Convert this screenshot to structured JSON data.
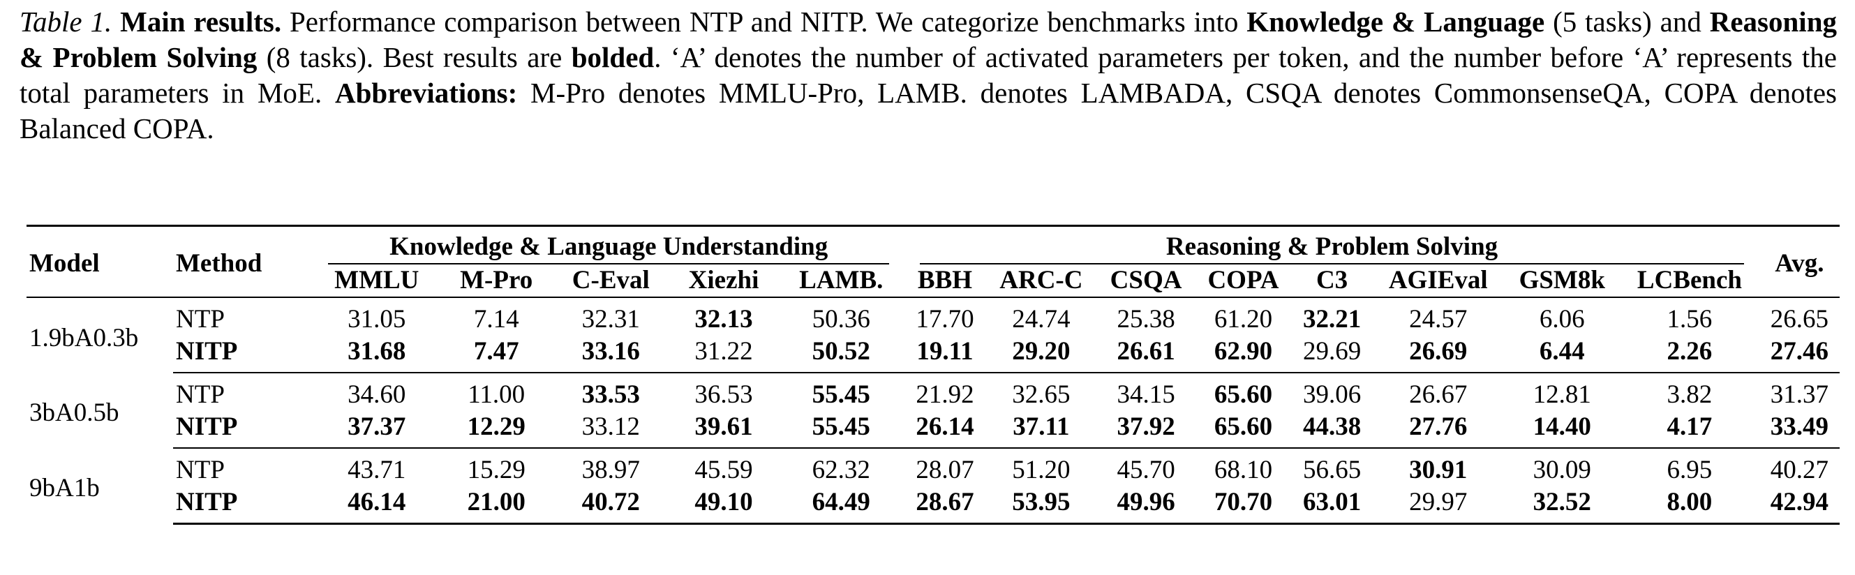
{
  "caption": {
    "label": "Table 1.",
    "title": "Main results.",
    "p1": " Performance comparison between NTP and NITP. We categorize benchmarks into ",
    "g1": "Knowledge & Language",
    "p2": " (5 tasks) and ",
    "g2": "Reasoning & Problem Solving",
    "p3": " (8 tasks). Best results are ",
    "bolded": "bolded",
    "p4": ". ‘A’ denotes the number of activated parameters per token, and the number before ‘A’ represents the total parameters in MoE. ",
    "abbr_label": "Abbreviations:",
    "p5": " M-Pro denotes MMLU-Pro, LAMB. denotes LAMBADA, CSQA denotes CommonsenseQA, COPA denotes Balanced COPA."
  },
  "table": {
    "model_header": "Model",
    "method_header": "Method",
    "avg_header": "Avg.",
    "groups": [
      "Knowledge & Language Understanding",
      "Reasoning & Problem Solving"
    ],
    "columns": [
      "MMLU",
      "M-Pro",
      "C-Eval",
      "Xiezhi",
      "LAMB.",
      "BBH",
      "ARC-C",
      "CSQA",
      "COPA",
      "C3",
      "AGIEval",
      "GSM8k",
      "LCBench"
    ],
    "blocks": [
      {
        "model": "1.9bA0.3b",
        "rows": [
          {
            "method": "NTP",
            "values": [
              "31.05",
              "7.14",
              "32.31",
              "32.13",
              "50.36",
              "17.70",
              "24.74",
              "25.38",
              "61.20",
              "32.21",
              "24.57",
              "6.06",
              "1.56"
            ],
            "avg": "26.65"
          },
          {
            "method": "NITP",
            "values": [
              "31.68",
              "7.47",
              "33.16",
              "31.22",
              "50.52",
              "19.11",
              "29.20",
              "26.61",
              "62.90",
              "29.69",
              "26.69",
              "6.44",
              "2.26"
            ],
            "avg": "27.46"
          }
        ]
      },
      {
        "model": "3bA0.5b",
        "rows": [
          {
            "method": "NTP",
            "values": [
              "34.60",
              "11.00",
              "33.53",
              "36.53",
              "55.45",
              "21.92",
              "32.65",
              "34.15",
              "65.60",
              "39.06",
              "26.67",
              "12.81",
              "3.82"
            ],
            "avg": "31.37"
          },
          {
            "method": "NITP",
            "values": [
              "37.37",
              "12.29",
              "33.12",
              "39.61",
              "55.45",
              "26.14",
              "37.11",
              "37.92",
              "65.60",
              "44.38",
              "27.76",
              "14.40",
              "4.17"
            ],
            "avg": "33.49"
          }
        ]
      },
      {
        "model": "9bA1b",
        "rows": [
          {
            "method": "NTP",
            "values": [
              "43.71",
              "15.29",
              "38.97",
              "45.59",
              "62.32",
              "28.07",
              "51.20",
              "45.70",
              "68.10",
              "56.65",
              "30.91",
              "30.09",
              "6.95"
            ],
            "avg": "40.27"
          },
          {
            "method": "NITP",
            "values": [
              "46.14",
              "21.00",
              "40.72",
              "49.10",
              "64.49",
              "28.67",
              "53.95",
              "49.96",
              "70.70",
              "63.01",
              "29.97",
              "32.52",
              "8.00"
            ],
            "avg": "42.94"
          }
        ]
      }
    ]
  }
}
